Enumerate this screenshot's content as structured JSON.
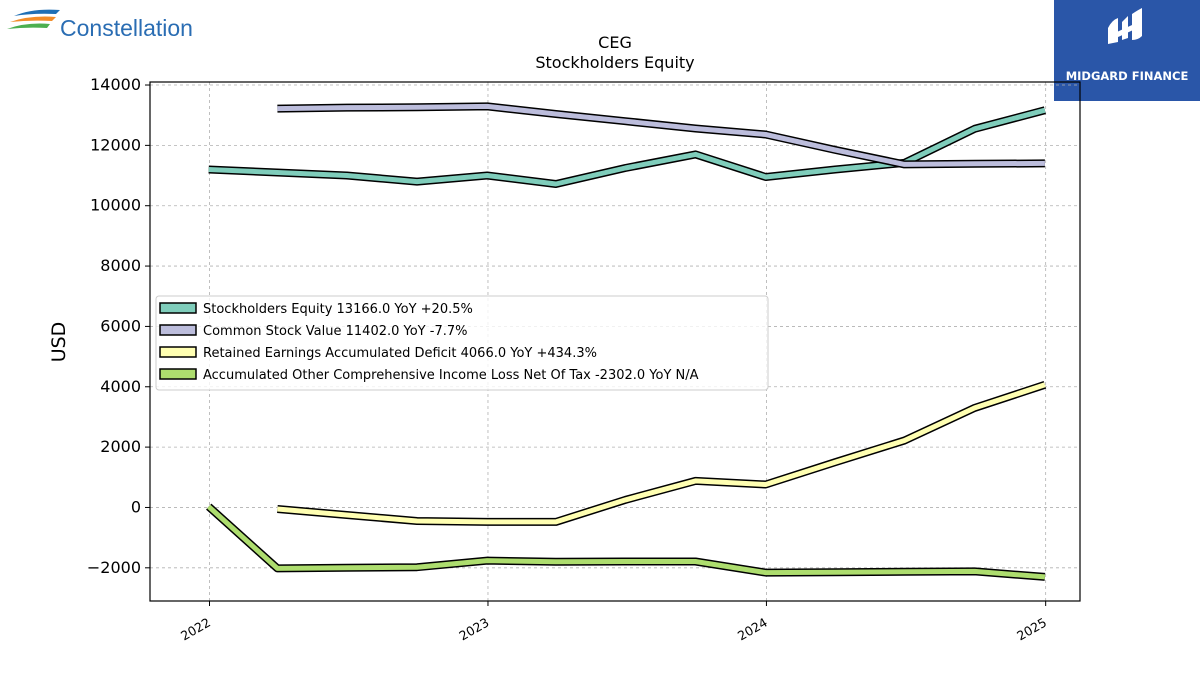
{
  "branding": {
    "company_logo_text": "Constellation",
    "publisher_logo_text": "MIDGARD FINANCE"
  },
  "chart_data": {
    "type": "line",
    "title": "CEG",
    "subtitle": "Stockholders  Equity",
    "xlabel": "",
    "ylabel": "USD",
    "ylim": [
      -3100,
      14100
    ],
    "yticks": [
      -2000,
      0,
      2000,
      4000,
      6000,
      8000,
      10000,
      12000,
      14000
    ],
    "ytick_labels": [
      "−2000",
      "0",
      "2000",
      "4000",
      "6000",
      "8000",
      "10000",
      "12000",
      "14000"
    ],
    "xlim": [
      "2021-10-15",
      "2025-02-15"
    ],
    "xticks": [
      "2022-01-01",
      "2023-01-01",
      "2024-01-01",
      "2025-01-01"
    ],
    "xtick_labels": [
      "2022",
      "2023",
      "2024",
      "2025"
    ],
    "grid": true,
    "legend_position": "center-left",
    "series": [
      {
        "name": "Stockholders Equity",
        "legend_label": "Stockholders Equity  13166.0 YoY +20.5%",
        "color": "#7fcdbb",
        "points": [
          [
            "2021-12-31",
            11200
          ],
          [
            "2022-06-30",
            11000
          ],
          [
            "2022-09-30",
            10800
          ],
          [
            "2022-12-31",
            11000
          ],
          [
            "2023-03-31",
            10720
          ],
          [
            "2023-06-30",
            11250
          ],
          [
            "2023-09-30",
            11700
          ],
          [
            "2023-12-31",
            10950
          ],
          [
            "2024-03-31",
            11200
          ],
          [
            "2024-06-30",
            11420
          ],
          [
            "2024-09-30",
            12550
          ],
          [
            "2024-12-31",
            13166
          ]
        ]
      },
      {
        "name": "Common Stock Value",
        "legend_label": "Common Stock Value  11402.0 YoY -7.7%",
        "color": "#bcbddc",
        "points": [
          [
            "2022-03-31",
            13220
          ],
          [
            "2022-06-30",
            13250
          ],
          [
            "2022-09-30",
            13260
          ],
          [
            "2022-12-31",
            13290
          ],
          [
            "2023-03-31",
            13040
          ],
          [
            "2023-06-30",
            12800
          ],
          [
            "2023-09-30",
            12560
          ],
          [
            "2023-12-31",
            12360
          ],
          [
            "2024-03-31",
            11850
          ],
          [
            "2024-06-30",
            11370
          ],
          [
            "2024-09-30",
            11390
          ],
          [
            "2024-12-31",
            11402
          ]
        ]
      },
      {
        "name": "Retained Earnings Accumulated Deficit",
        "legend_label": "Retained Earnings Accumulated Deficit  4066.0 YoY +434.3%",
        "color": "#ffffb2",
        "points": [
          [
            "2022-03-31",
            -50
          ],
          [
            "2022-06-30",
            -250
          ],
          [
            "2022-09-30",
            -450
          ],
          [
            "2022-12-31",
            -480
          ],
          [
            "2023-03-31",
            -480
          ],
          [
            "2023-06-30",
            250
          ],
          [
            "2023-09-30",
            880
          ],
          [
            "2023-12-31",
            760
          ],
          [
            "2024-03-31",
            1500
          ],
          [
            "2024-06-30",
            2220
          ],
          [
            "2024-09-30",
            3300
          ],
          [
            "2024-12-31",
            4066
          ]
        ]
      },
      {
        "name": "Accumulated Other Comprehensive Income Loss Net Of Tax",
        "legend_label": "Accumulated Other Comprehensive Income Loss Net Of Tax  -2302.0 YoY N/A",
        "color": "#addd6e",
        "points": [
          [
            "2021-12-31",
            30
          ],
          [
            "2022-03-31",
            -2020
          ],
          [
            "2022-06-30",
            -2000
          ],
          [
            "2022-09-30",
            -1980
          ],
          [
            "2022-12-31",
            -1760
          ],
          [
            "2023-03-31",
            -1800
          ],
          [
            "2023-06-30",
            -1790
          ],
          [
            "2023-09-30",
            -1790
          ],
          [
            "2023-12-31",
            -2160
          ],
          [
            "2024-03-31",
            -2150
          ],
          [
            "2024-06-30",
            -2130
          ],
          [
            "2024-09-30",
            -2120
          ],
          [
            "2024-12-31",
            -2302
          ]
        ]
      }
    ]
  }
}
